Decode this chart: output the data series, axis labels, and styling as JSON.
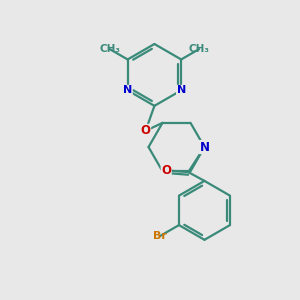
{
  "bg_color": "#e8e8e8",
  "bond_color": "#3a8a7a",
  "N_color": "#0000cc",
  "O_color": "#cc0000",
  "Br_color": "#cc7700",
  "figsize": [
    3.0,
    3.0
  ],
  "dpi": 100,
  "xlim": [
    0,
    10
  ],
  "ylim": [
    0,
    10
  ]
}
